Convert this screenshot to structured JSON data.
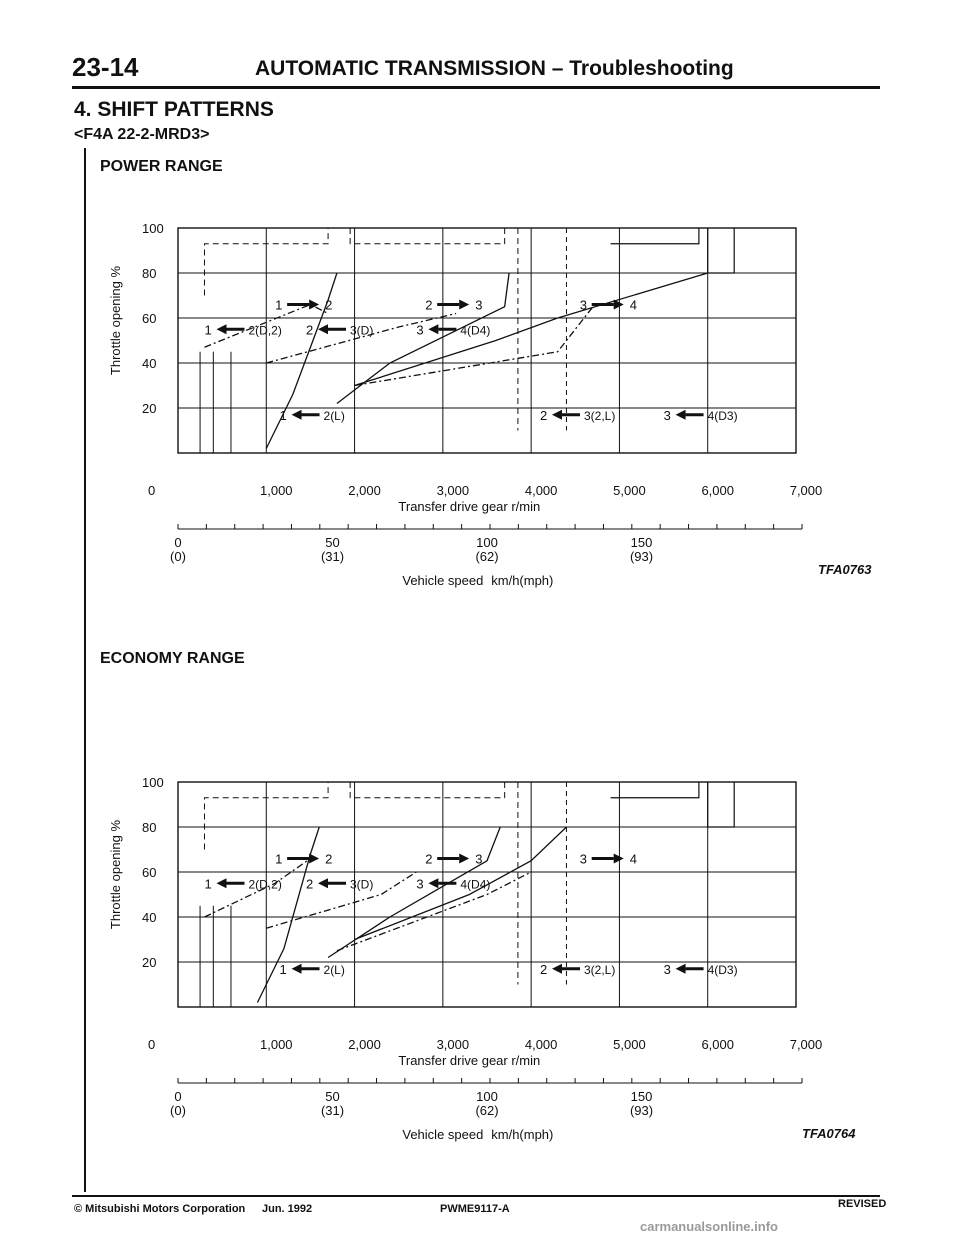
{
  "header": {
    "page_number": "23-14",
    "title": "AUTOMATIC TRANSMISSION – Troubleshooting"
  },
  "section": {
    "title": "4. SHIFT PATTERNS",
    "model": "<F4A 22-2-MRD3>"
  },
  "figures": [
    {
      "title": "POWER RANGE",
      "code": "TFA0763"
    },
    {
      "title": "ECONOMY RANGE",
      "code": "TFA0764"
    }
  ],
  "chart_data": [
    {
      "type": "line",
      "title": "POWER RANGE",
      "ylabel": "Throttle opening %",
      "xlabel": "Transfer drive gear r/min",
      "x_ticks": [
        "0",
        "1,000",
        "2,000",
        "3,000",
        "4,000",
        "5,000",
        "6,000",
        "7,000"
      ],
      "y_ticks": [
        "0",
        "20",
        "40",
        "60",
        "80",
        "100"
      ],
      "xlim": [
        0,
        7000
      ],
      "ylim": [
        0,
        100
      ],
      "secondary_axis": {
        "label": "Vehicle speed",
        "unit": "km/h(mph)",
        "ticks": [
          "0",
          "50",
          "100",
          "150"
        ],
        "ticks_mph": [
          "(0)",
          "(31)",
          "(62)",
          "(93)"
        ]
      },
      "labels": {
        "up_1_2": "1",
        "up_1_2_to": "2",
        "up_2_3": "2",
        "up_2_3_to": "3",
        "up_3_4": "3",
        "up_3_4_to": "4",
        "down_2_1": "1",
        "down_2_1_from": "2(D,2)",
        "down_3_2": "2",
        "down_3_2_from": "3(D)",
        "down_4_3": "3",
        "down_4_3_from": "4(D4)",
        "down_2l_1": "1",
        "down_2l_1_from": "2(L)",
        "down_32l_2": "2",
        "down_32l_2_from": "3(2,L)",
        "down_4d3_3": "3",
        "down_4d3_3_from": "4(D3)"
      },
      "series": [
        {
          "name": "1-2 upshift",
          "x": [
            1000,
            1300,
            1700,
            1800
          ],
          "y": [
            2,
            26,
            68,
            80
          ]
        },
        {
          "name": "2-3 upshift",
          "x": [
            1800,
            2400,
            3700,
            3750
          ],
          "y": [
            22,
            40,
            65,
            80
          ]
        },
        {
          "name": "3-4 upshift",
          "x": [
            2000,
            3600,
            4300,
            6000
          ],
          "y": [
            30,
            50,
            60,
            80
          ]
        },
        {
          "name": "2-1 downshift",
          "x": [
            300,
            1500,
            1700
          ],
          "y": [
            47,
            66,
            62
          ]
        },
        {
          "name": "3-2 downshift",
          "x": [
            1000,
            2500,
            3150
          ],
          "y": [
            40,
            56,
            62
          ]
        },
        {
          "name": "4-3 downshift",
          "x": [
            2000,
            4300,
            4700
          ],
          "y": [
            30,
            45,
            65
          ]
        }
      ]
    },
    {
      "type": "line",
      "title": "ECONOMY RANGE",
      "ylabel": "Throttle opening %",
      "xlabel": "Transfer drive gear r/min",
      "x_ticks": [
        "0",
        "1,000",
        "2,000",
        "3,000",
        "4,000",
        "5,000",
        "6,000",
        "7,000"
      ],
      "y_ticks": [
        "0",
        "20",
        "40",
        "60",
        "80",
        "100"
      ],
      "xlim": [
        0,
        7000
      ],
      "ylim": [
        0,
        100
      ],
      "secondary_axis": {
        "label": "Vehicle speed",
        "unit": "km/h(mph)",
        "ticks": [
          "0",
          "50",
          "100",
          "150"
        ],
        "ticks_mph": [
          "(0)",
          "(31)",
          "(62)",
          "(93)"
        ]
      },
      "labels": {
        "up_1_2": "1",
        "up_1_2_to": "2",
        "up_2_3": "2",
        "up_2_3_to": "3",
        "up_3_4": "3",
        "up_3_4_to": "4",
        "down_2_1": "1",
        "down_2_1_from": "2(D,2)",
        "down_3_2": "2",
        "down_3_2_from": "3(D)",
        "down_4_3": "3",
        "down_4_3_from": "4(D4)",
        "down_2l_1": "1",
        "down_2l_1_from": "2(L)",
        "down_32l_2": "2",
        "down_32l_2_from": "3(2,L)",
        "down_4d3_3": "3",
        "down_4d3_3_from": "4(D3)"
      },
      "series": [
        {
          "name": "1-2 upshift",
          "x": [
            900,
            1200,
            1500,
            1600
          ],
          "y": [
            2,
            26,
            68,
            80
          ]
        },
        {
          "name": "2-3 upshift",
          "x": [
            1700,
            2400,
            3500,
            3650
          ],
          "y": [
            22,
            40,
            65,
            80
          ]
        },
        {
          "name": "3-4 upshift",
          "x": [
            2000,
            3300,
            4000,
            4400
          ],
          "y": [
            30,
            50,
            65,
            80
          ]
        },
        {
          "name": "2-1 downshift",
          "x": [
            300,
            1100,
            1500
          ],
          "y": [
            40,
            55,
            66
          ]
        },
        {
          "name": "3-2 downshift",
          "x": [
            1000,
            2300,
            2700
          ],
          "y": [
            35,
            50,
            60
          ]
        },
        {
          "name": "4-3 downshift",
          "x": [
            1800,
            3500,
            4000
          ],
          "y": [
            25,
            50,
            60
          ]
        }
      ]
    }
  ],
  "footer": {
    "copyright": "© Mitsubishi Motors Corporation",
    "date": "Jun. 1992",
    "pub_code": "PWME9117-A",
    "revised": "REVISED",
    "watermark": "carmanualsonline.info"
  }
}
